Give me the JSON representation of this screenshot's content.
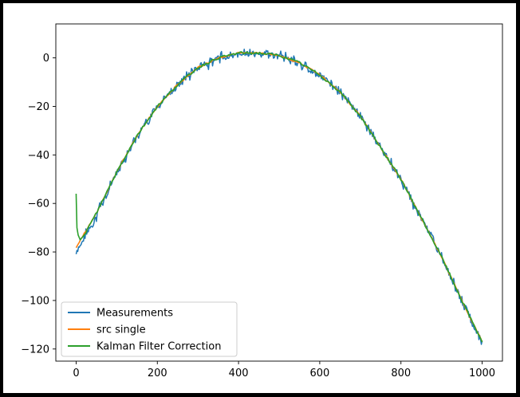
{
  "chart_data": {
    "type": "line",
    "title": "",
    "xlabel": "",
    "ylabel": "",
    "xlim": [
      -50,
      1050
    ],
    "ylim": [
      -125,
      14
    ],
    "xticks": [
      0,
      200,
      400,
      600,
      800,
      1000
    ],
    "yticks": [
      0,
      -20,
      -40,
      -60,
      -80,
      -100,
      -120
    ],
    "grid": false,
    "legend_position": "lower-left",
    "colors": {
      "Measurements": "#1f77b4",
      "src single": "#ff7f0e",
      "Kalman Filter Correction": "#2ca02c"
    },
    "series": [
      {
        "name": "Measurements",
        "model": "noisy samples around a downward parabola",
        "x": [
          0,
          50,
          100,
          150,
          200,
          250,
          300,
          350,
          400,
          450,
          500,
          550,
          600,
          650,
          700,
          750,
          800,
          850,
          900,
          950,
          1000
        ],
        "y": [
          -80,
          -65,
          -47,
          -32,
          -20,
          -11,
          -4,
          0,
          2,
          2,
          1,
          -2,
          -7,
          -14,
          -24,
          -37,
          -50,
          -66,
          -82,
          -100,
          -118
        ]
      },
      {
        "name": "src single",
        "x": [
          0,
          50,
          100,
          150,
          200,
          250,
          300,
          350,
          400,
          450,
          500,
          550,
          600,
          650,
          700,
          750,
          800,
          850,
          900,
          950,
          1000
        ],
        "y": [
          -78,
          -64,
          -47,
          -32,
          -20,
          -11,
          -4,
          0,
          2,
          2,
          1,
          -2,
          -7,
          -14,
          -24,
          -37,
          -50,
          -66,
          -82,
          -100,
          -117
        ]
      },
      {
        "name": "Kalman Filter Correction",
        "x": [
          0,
          2,
          5,
          10,
          20,
          50,
          100,
          150,
          200,
          250,
          300,
          350,
          400,
          450,
          500,
          550,
          600,
          650,
          700,
          750,
          800,
          850,
          900,
          950,
          1000
        ],
        "y": [
          -56,
          -70,
          -73,
          -75,
          -73,
          -64,
          -47,
          -32,
          -20,
          -11,
          -4,
          0,
          2,
          2,
          1,
          -2,
          -7,
          -14,
          -24,
          -37,
          -50,
          -66,
          -82,
          -100,
          -117
        ]
      }
    ]
  }
}
